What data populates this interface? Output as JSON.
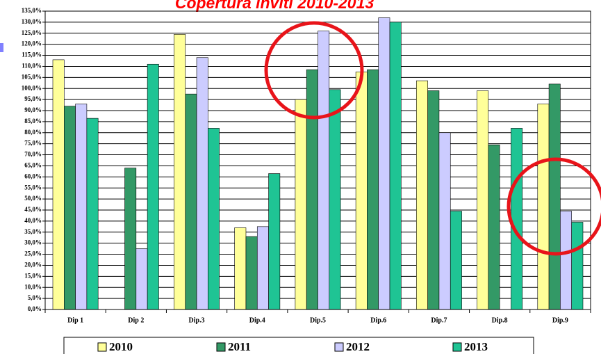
{
  "chart_data": {
    "type": "bar",
    "title": "Copertura inviti 2010-2013",
    "categories": [
      "Dip 1",
      "Dip 2",
      "Dip.3",
      "Dip.4",
      "Dip.5",
      "Dip.6",
      "Dip.7",
      "Dip.8",
      "Dip.9"
    ],
    "series": [
      {
        "name": "2010",
        "color": "#ffff99",
        "values": [
          113,
          null,
          124.5,
          37,
          95,
          107.5,
          103.5,
          99,
          93
        ]
      },
      {
        "name": "2011",
        "color": "#339966",
        "values": [
          92,
          64,
          97.5,
          33,
          108.5,
          108.5,
          99,
          74.5,
          102
        ]
      },
      {
        "name": "2012",
        "color": "#ccccff",
        "values": [
          93,
          27.5,
          114,
          37.5,
          126,
          132,
          80,
          null,
          44.5
        ]
      },
      {
        "name": "2013",
        "color": "#1fc494",
        "values": [
          86.5,
          111,
          82,
          61.5,
          99.5,
          130,
          44.5,
          82,
          39.5
        ]
      }
    ],
    "ylim": [
      0,
      135
    ],
    "yticks": [
      {
        "value": 0,
        "label": "0,0%"
      },
      {
        "value": 5,
        "label": "5,0%"
      },
      {
        "value": 10,
        "label": "10,0%"
      },
      {
        "value": 15,
        "label": "15,0%"
      },
      {
        "value": 20,
        "label": "20,0%"
      },
      {
        "value": 25,
        "label": "25,0%"
      },
      {
        "value": 30,
        "label": "30,0%"
      },
      {
        "value": 35,
        "label": "35,0%"
      },
      {
        "value": 40,
        "label": "40,0%"
      },
      {
        "value": 45,
        "label": "45,0%"
      },
      {
        "value": 50,
        "label": "50,0%"
      },
      {
        "value": 55,
        "label": "55,0%"
      },
      {
        "value": 60,
        "label": "60,0%"
      },
      {
        "value": 65,
        "label": "65,0%"
      },
      {
        "value": 70,
        "label": "70,0%"
      },
      {
        "value": 75,
        "label": "75,0%"
      },
      {
        "value": 80,
        "label": "80,0%"
      },
      {
        "value": 85,
        "label": "85,0%"
      },
      {
        "value": 90,
        "label": "90,0%"
      },
      {
        "value": 95,
        "label": "95,0%"
      },
      {
        "value": 100,
        "label": "100,0%"
      },
      {
        "value": 105,
        "label": "105,0%"
      },
      {
        "value": 110,
        "label": "110,0%"
      },
      {
        "value": 115,
        "label": "115,0%"
      },
      {
        "value": 120,
        "label": "120,0%"
      },
      {
        "value": 125,
        "label": "125,0%"
      },
      {
        "value": 130,
        "label": "130,0%"
      },
      {
        "value": 135,
        "label": "135,0%"
      }
    ],
    "grid": true,
    "legend": "bottom"
  }
}
